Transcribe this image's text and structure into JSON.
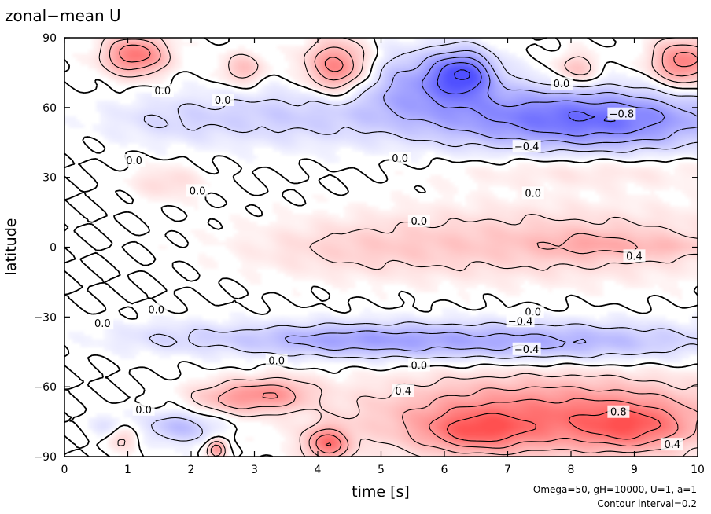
{
  "chart_data": {
    "type": "heatmap",
    "title": "zonal−mean U",
    "xlabel": "time [s]",
    "ylabel": "latitude",
    "xlim": [
      0,
      10
    ],
    "ylim": [
      -90,
      90
    ],
    "x_ticks": [
      "0",
      "1",
      "2",
      "3",
      "4",
      "5",
      "6",
      "7",
      "8",
      "9",
      "10"
    ],
    "y_ticks": [
      "90",
      "60",
      "30",
      "0",
      "−30",
      "−60",
      "−90"
    ],
    "annotations": [
      "Omega=50, gH=10000, U=1, a=1",
      "Contour interval=0.2"
    ],
    "contour_interval": 0.2,
    "colors": {
      "positive": "#e05050",
      "negative": "#5050e0",
      "zero": "#ffffff"
    },
    "contour_labels": [
      {
        "text": "0.0",
        "x": 1.55,
        "y": 67
      },
      {
        "text": "0.0",
        "x": 2.5,
        "y": 63
      },
      {
        "text": "0.0",
        "x": 7.85,
        "y": 70
      },
      {
        "text": "−0.8",
        "x": 8.8,
        "y": 57
      },
      {
        "text": "−0.4",
        "x": 7.3,
        "y": 43
      },
      {
        "text": "0.0",
        "x": 1.1,
        "y": 37
      },
      {
        "text": "0.0",
        "x": 5.3,
        "y": 38
      },
      {
        "text": "0.0",
        "x": 2.1,
        "y": 24
      },
      {
        "text": "0.0",
        "x": 7.4,
        "y": 23
      },
      {
        "text": "0.0",
        "x": 5.6,
        "y": 11
      },
      {
        "text": "0.4",
        "x": 9.0,
        "y": -4
      },
      {
        "text": "0.0",
        "x": 0.6,
        "y": -33
      },
      {
        "text": "0.0",
        "x": 1.45,
        "y": -27
      },
      {
        "text": "0.0",
        "x": 7.4,
        "y": -28
      },
      {
        "text": "−0.4",
        "x": 7.2,
        "y": -32
      },
      {
        "text": "−0.4",
        "x": 7.3,
        "y": -44
      },
      {
        "text": "0.0",
        "x": 3.35,
        "y": -49
      },
      {
        "text": "0.0",
        "x": 5.6,
        "y": -51
      },
      {
        "text": "0.4",
        "x": 5.35,
        "y": -62
      },
      {
        "text": "0.0",
        "x": 1.25,
        "y": -70
      },
      {
        "text": "0.8",
        "x": 8.75,
        "y": -71
      },
      {
        "text": "0.4",
        "x": 9.6,
        "y": -85
      }
    ],
    "fields": [
      {
        "x": 1.1,
        "y": 83,
        "sx": 0.35,
        "sy": 6,
        "amp": 0.75
      },
      {
        "x": 4.3,
        "y": 78,
        "sx": 0.35,
        "sy": 8,
        "amp": 0.7
      },
      {
        "x": 2.8,
        "y": 77,
        "sx": 0.25,
        "sy": 5,
        "amp": 0.35
      },
      {
        "x": 8.1,
        "y": 77,
        "sx": 0.25,
        "sy": 5,
        "amp": 0.35
      },
      {
        "x": 9.8,
        "y": 80,
        "sx": 0.35,
        "sy": 7,
        "amp": 0.7
      },
      {
        "x": 6.3,
        "y": 75,
        "sx": 0.35,
        "sy": 7,
        "amp": -0.8
      },
      {
        "x": 5.5,
        "y": 72,
        "sx": 0.6,
        "sy": 10,
        "amp": -0.35
      },
      {
        "x": 8.6,
        "y": 55,
        "sx": 1.3,
        "sy": 9,
        "amp": -0.7
      },
      {
        "x": 6.6,
        "y": 58,
        "sx": 1.2,
        "sy": 10,
        "amp": -0.35
      },
      {
        "x": 3.6,
        "y": 57,
        "sx": 1.2,
        "sy": 9,
        "amp": -0.25
      },
      {
        "x": 1.6,
        "y": 55,
        "sx": 0.8,
        "sy": 7,
        "amp": -0.15
      },
      {
        "x": 8.3,
        "y": 33,
        "sx": 1.6,
        "sy": 5,
        "amp": 0.15
      },
      {
        "x": 1.6,
        "y": 28,
        "sx": 0.4,
        "sy": 5,
        "amp": 0.2
      },
      {
        "x": 7.6,
        "y": 2,
        "sx": 2.2,
        "sy": 11,
        "amp": 0.3
      },
      {
        "x": 8.4,
        "y": 1,
        "sx": 0.6,
        "sy": 4,
        "amp": 0.2
      },
      {
        "x": 9.6,
        "y": 0,
        "sx": 0.4,
        "sy": 3,
        "amp": 0.15
      },
      {
        "x": 4.5,
        "y": -1,
        "sx": 1.2,
        "sy": 8,
        "amp": 0.15
      },
      {
        "x": 7.4,
        "y": -41,
        "sx": 2.1,
        "sy": 6,
        "amp": -0.45
      },
      {
        "x": 4.2,
        "y": -40,
        "sx": 1.3,
        "sy": 5,
        "amp": -0.35
      },
      {
        "x": 1.6,
        "y": -39,
        "sx": 0.8,
        "sy": 5,
        "amp": -0.15
      },
      {
        "x": 7.6,
        "y": -73,
        "sx": 1.9,
        "sy": 12,
        "amp": 0.7
      },
      {
        "x": 6.5,
        "y": -80,
        "sx": 0.6,
        "sy": 6,
        "amp": 0.45
      },
      {
        "x": 9.0,
        "y": -78,
        "sx": 0.6,
        "sy": 7,
        "amp": 0.45
      },
      {
        "x": 2.7,
        "y": -65,
        "sx": 0.5,
        "sy": 5,
        "amp": 0.45
      },
      {
        "x": 3.4,
        "y": -63,
        "sx": 0.4,
        "sy": 5,
        "amp": 0.35
      },
      {
        "x": 4.15,
        "y": -85,
        "sx": 0.25,
        "sy": 5,
        "amp": 0.7
      },
      {
        "x": 0.9,
        "y": -82,
        "sx": 0.2,
        "sy": 4,
        "amp": 0.3
      },
      {
        "x": 1.8,
        "y": -78,
        "sx": 0.45,
        "sy": 5,
        "amp": -0.35
      },
      {
        "x": 2.4,
        "y": -87,
        "sx": 0.1,
        "sy": 3,
        "amp": 0.6
      },
      {
        "x": 0.7,
        "y": -78,
        "sx": 0.2,
        "sy": 4,
        "amp": -0.2
      }
    ]
  }
}
